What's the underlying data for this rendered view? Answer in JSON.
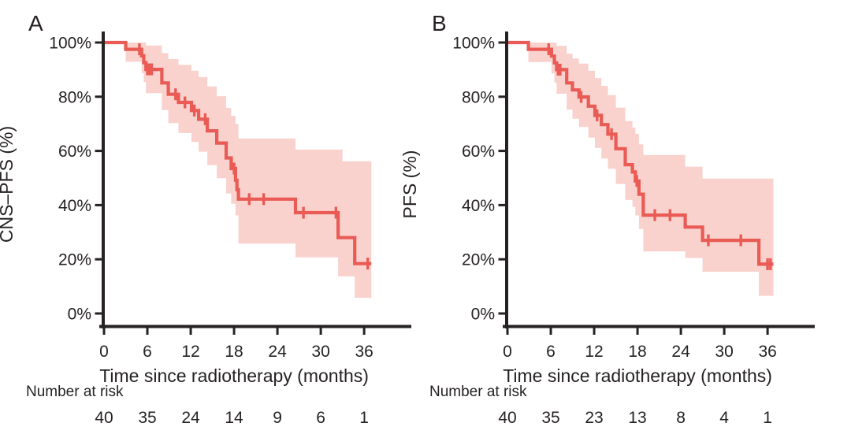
{
  "figure": {
    "background": "#ffffff",
    "ink_color": "#262223",
    "line_color": "#e95b54",
    "band_color": "#f9d2ce"
  },
  "chart_data": [
    {
      "panel_label": "A",
      "type": "line",
      "subtype": "kaplan-meier-step-with-confidence-band",
      "ylabel": "CNS–PFS (%)",
      "xlabel": "Time since radiotherapy (months)",
      "xlim": [
        0,
        42
      ],
      "ylim": [
        0,
        100
      ],
      "grid": false,
      "xticks": [
        0,
        6,
        12,
        18,
        24,
        30,
        36
      ],
      "xtick_labels": [
        "0",
        "6",
        "12",
        "18",
        "24",
        "30",
        "36"
      ],
      "ytick_values": [
        0,
        20,
        40,
        60,
        80,
        100
      ],
      "ytick_labels": [
        "0%",
        "20%",
        "40%",
        "60%",
        "80%",
        "100%"
      ],
      "curve_end": 37.0,
      "steps": [
        [
          0,
          100
        ],
        [
          3.0,
          97.5
        ],
        [
          5.2,
          95.1
        ],
        [
          5.5,
          92.6
        ],
        [
          5.8,
          90.1
        ],
        [
          8.0,
          85.1
        ],
        [
          8.9,
          80.9
        ],
        [
          10.3,
          77.9
        ],
        [
          12.1,
          74.9
        ],
        [
          13.1,
          71.7
        ],
        [
          14.3,
          67.4
        ],
        [
          15.6,
          62.9
        ],
        [
          16.9,
          57.4
        ],
        [
          17.6,
          53.5
        ],
        [
          18.2,
          49.2
        ],
        [
          18.4,
          45.7
        ],
        [
          18.6,
          42.2
        ],
        [
          26.5,
          37.2
        ],
        [
          32.4,
          28.0
        ],
        [
          34.7,
          18.4
        ]
      ],
      "censors": [
        [
          4.9,
          97.5
        ],
        [
          6.0,
          90.1
        ],
        [
          6.3,
          90.1
        ],
        [
          6.6,
          90.1
        ],
        [
          9.9,
          80.9
        ],
        [
          11.2,
          77.9
        ],
        [
          12.5,
          74.9
        ],
        [
          14.0,
          71.7
        ],
        [
          18.0,
          53.5
        ],
        [
          20.1,
          42.2
        ],
        [
          22.1,
          42.2
        ],
        [
          27.6,
          37.2
        ],
        [
          32.1,
          37.2
        ],
        [
          36.5,
          18.4
        ]
      ],
      "band_hi": [
        [
          3.0,
          100
        ],
        [
          5.8,
          98.9
        ],
        [
          8.0,
          96.1
        ],
        [
          8.9,
          93.9
        ],
        [
          10.3,
          91.8
        ],
        [
          12.1,
          89.6
        ],
        [
          13.1,
          87.3
        ],
        [
          14.3,
          83.8
        ],
        [
          15.6,
          80.2
        ],
        [
          16.9,
          75.9
        ],
        [
          17.6,
          72.9
        ],
        [
          18.2,
          70.0
        ],
        [
          18.6,
          64.6
        ],
        [
          26.5,
          60.5
        ],
        [
          33.0,
          56.2
        ]
      ],
      "band_lo": [
        [
          3.0,
          92.9
        ],
        [
          5.2,
          88.7
        ],
        [
          5.5,
          85.4
        ],
        [
          5.8,
          81.3
        ],
        [
          8.0,
          75.1
        ],
        [
          8.9,
          70.3
        ],
        [
          10.3,
          66.6
        ],
        [
          12.1,
          63.3
        ],
        [
          13.1,
          59.7
        ],
        [
          14.3,
          54.8
        ],
        [
          15.6,
          49.9
        ],
        [
          16.9,
          44.3
        ],
        [
          17.6,
          40.5
        ],
        [
          18.2,
          36.2
        ],
        [
          18.6,
          25.8
        ],
        [
          26.5,
          20.7
        ],
        [
          32.4,
          13.7
        ],
        [
          34.7,
          5.8
        ]
      ],
      "risk_label": "Number at risk",
      "number_at_risk": [
        40,
        35,
        24,
        14,
        9,
        6,
        1
      ]
    },
    {
      "panel_label": "B",
      "type": "line",
      "subtype": "kaplan-meier-step-with-confidence-band",
      "ylabel": "PFS (%)",
      "xlabel": "Time since radiotherapy (months)",
      "xlim": [
        0,
        42
      ],
      "ylim": [
        0,
        100
      ],
      "grid": false,
      "xticks": [
        0,
        6,
        12,
        18,
        24,
        30,
        36
      ],
      "xtick_labels": [
        "0",
        "6",
        "12",
        "18",
        "24",
        "30",
        "36"
      ],
      "ytick_values": [
        0,
        20,
        40,
        60,
        80,
        100
      ],
      "ytick_labels": [
        "0%",
        "20%",
        "40%",
        "60%",
        "80%",
        "100%"
      ],
      "curve_end": 36.8,
      "steps": [
        [
          0,
          100
        ],
        [
          2.9,
          97.5
        ],
        [
          6.1,
          95.0
        ],
        [
          6.5,
          92.5
        ],
        [
          6.8,
          90.0
        ],
        [
          8.2,
          85.1
        ],
        [
          9.0,
          82.5
        ],
        [
          9.9,
          79.9
        ],
        [
          11.2,
          76.5
        ],
        [
          12.1,
          73.1
        ],
        [
          13.0,
          69.7
        ],
        [
          13.9,
          66.2
        ],
        [
          15.0,
          60.8
        ],
        [
          16.3,
          54.9
        ],
        [
          17.3,
          52.2
        ],
        [
          17.7,
          48.9
        ],
        [
          18.2,
          44.0
        ],
        [
          18.8,
          36.3
        ],
        [
          24.6,
          31.9
        ],
        [
          27.0,
          27.0
        ],
        [
          34.8,
          18.2
        ]
      ],
      "censors": [
        [
          5.7,
          97.5
        ],
        [
          7.0,
          90.0
        ],
        [
          7.3,
          90.0
        ],
        [
          10.2,
          79.9
        ],
        [
          12.4,
          73.1
        ],
        [
          14.4,
          66.2
        ],
        [
          17.9,
          48.9
        ],
        [
          20.4,
          36.3
        ],
        [
          22.5,
          36.3
        ],
        [
          27.8,
          27.0
        ],
        [
          32.3,
          27.0
        ],
        [
          36.0,
          18.2
        ],
        [
          36.4,
          18.2
        ]
      ],
      "band_hi": [
        [
          2.9,
          100
        ],
        [
          6.8,
          98.8
        ],
        [
          8.2,
          95.9
        ],
        [
          9.0,
          94.1
        ],
        [
          9.9,
          92.2
        ],
        [
          11.2,
          89.6
        ],
        [
          12.1,
          86.9
        ],
        [
          13.0,
          84.0
        ],
        [
          13.9,
          80.6
        ],
        [
          15.0,
          76.0
        ],
        [
          16.3,
          71.0
        ],
        [
          17.3,
          68.6
        ],
        [
          17.7,
          66.3
        ],
        [
          18.2,
          62.4
        ],
        [
          18.8,
          58.5
        ],
        [
          24.6,
          54.2
        ],
        [
          27.0,
          49.8
        ]
      ],
      "band_lo": [
        [
          2.9,
          92.8
        ],
        [
          6.1,
          88.6
        ],
        [
          6.5,
          85.2
        ],
        [
          6.8,
          81.1
        ],
        [
          8.2,
          75.2
        ],
        [
          9.0,
          71.9
        ],
        [
          9.9,
          68.8
        ],
        [
          11.2,
          64.9
        ],
        [
          12.1,
          61.1
        ],
        [
          13.0,
          57.2
        ],
        [
          13.9,
          53.4
        ],
        [
          15.0,
          47.8
        ],
        [
          16.3,
          41.9
        ],
        [
          17.3,
          39.3
        ],
        [
          17.7,
          36.2
        ],
        [
          18.2,
          31.2
        ],
        [
          18.8,
          22.9
        ],
        [
          24.6,
          20.5
        ],
        [
          27.0,
          15.4
        ],
        [
          34.8,
          6.5
        ]
      ],
      "risk_label": "Number at risk",
      "number_at_risk": [
        40,
        35,
        23,
        13,
        8,
        4,
        1
      ]
    }
  ]
}
